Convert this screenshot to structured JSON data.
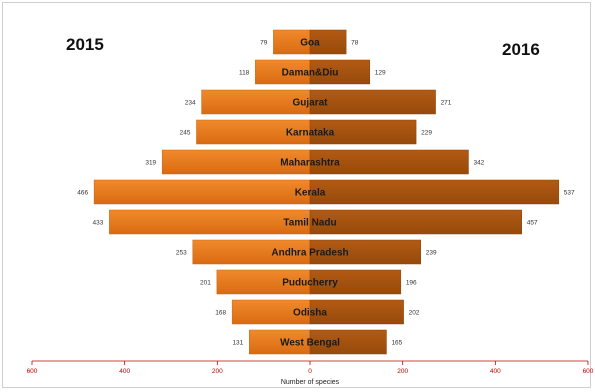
{
  "chart_data": {
    "type": "bar",
    "orientation": "horizontal",
    "layout": "butterfly",
    "categories": [
      "Goa",
      "Daman&Diu",
      "Gujarat",
      "Karnataka",
      "Maharashtra",
      "Kerala",
      "Tamil Nadu",
      "Andhra Pradesh",
      "Puducherry",
      "Odisha",
      "West Bengal"
    ],
    "series": [
      {
        "name": "2015",
        "values": [
          79,
          118,
          234,
          245,
          319,
          466,
          433,
          253,
          201,
          168,
          131
        ],
        "color": "#e87a1e",
        "side": "left"
      },
      {
        "name": "2016",
        "values": [
          78,
          129,
          271,
          229,
          342,
          537,
          457,
          239,
          196,
          202,
          165
        ],
        "color": "#a8520f",
        "side": "right"
      }
    ],
    "value_labels": {
      "left": [
        "79",
        "118",
        "234",
        "245",
        "319",
        "466",
        "433",
        "253",
        "201",
        "168",
        "131"
      ],
      "right": [
        "78",
        "129",
        "271",
        "229",
        "342",
        "537",
        "457",
        "239",
        "196",
        "202",
        "165"
      ]
    },
    "xlabel": "Number of species",
    "xlim": [
      -600,
      600
    ],
    "xticks": [
      -600,
      -400,
      -200,
      0,
      200,
      400,
      600
    ],
    "xtick_labels": [
      "600",
      "400",
      "200",
      "0",
      "200",
      "400",
      "600"
    ],
    "tick_color": "#c00000",
    "grid": false,
    "legend": "none"
  }
}
